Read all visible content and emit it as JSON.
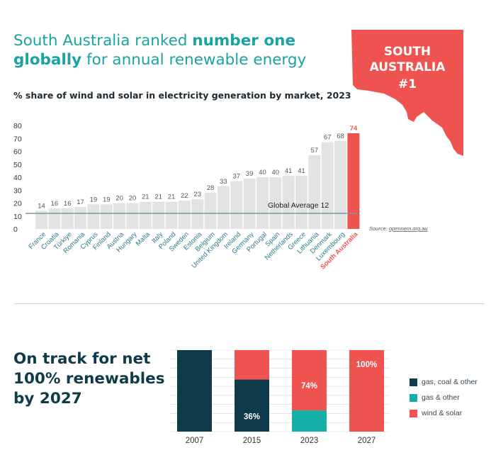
{
  "headline": {
    "part1": "South Australia ranked ",
    "bold1": "number one",
    "bold2": "globally",
    "part2": " for annual renewable energy"
  },
  "badge": {
    "line1": "SOUTH",
    "line2": "AUSTRALIA",
    "line3": "#1"
  },
  "subtitle": "% share of wind and solar in electricity generation by market, 2023",
  "chart_data": [
    {
      "type": "bar",
      "title": "% share of wind and solar in electricity generation by market, 2023",
      "categories": [
        "France",
        "Croatia",
        "Türkiye",
        "Romania",
        "Cyprus",
        "Finland",
        "Austria",
        "Hungary",
        "Malta",
        "Italy",
        "Poland",
        "Sweden",
        "Estonia",
        "Belgium",
        "United Kingdom",
        "Ireland",
        "Germany",
        "Portugal",
        "Spain",
        "Netherlands",
        "Greece",
        "Lithuania",
        "Denmark",
        "Luxembourg",
        "South Australia"
      ],
      "values": [
        14,
        16,
        16,
        17,
        19,
        19,
        20,
        20,
        21,
        21,
        21,
        22,
        23,
        28,
        33,
        37,
        39,
        40,
        40,
        41,
        41,
        57,
        67,
        68,
        74
      ],
      "highlight": "South Australia",
      "ylim": [
        0,
        80
      ],
      "yticks": [
        0,
        10,
        20,
        30,
        40,
        50,
        60,
        70,
        80
      ],
      "reference_line": {
        "label": "Global Average 12",
        "value": 12
      },
      "source_prefix": "Source: ",
      "source_link": "opennem.org.au",
      "colors": {
        "bar": "#e3e3e3",
        "highlight": "#ef5350",
        "reference": "#7d98a6",
        "label": "#2c7a8c"
      }
    },
    {
      "type": "bar",
      "stacked": true,
      "title": "On track for net 100% renewables by 2027",
      "categories": [
        "2007",
        "2015",
        "2023",
        "2027"
      ],
      "series": [
        {
          "name": "gas, coal & other",
          "values": [
            100,
            64,
            0,
            0
          ],
          "color": "#0e3a4a"
        },
        {
          "name": "gas & other",
          "values": [
            0,
            0,
            26,
            0
          ],
          "color": "#14b0a8"
        },
        {
          "name": "wind & solar",
          "values": [
            0,
            36,
            74,
            100
          ],
          "color": "#ef5350"
        }
      ],
      "data_labels": [
        "",
        "36%",
        "74%",
        "100%"
      ],
      "ylim": [
        0,
        100
      ]
    }
  ],
  "section2": {
    "line1": "On track for net",
    "line2": "100% renewables",
    "line3": "by 2027"
  }
}
